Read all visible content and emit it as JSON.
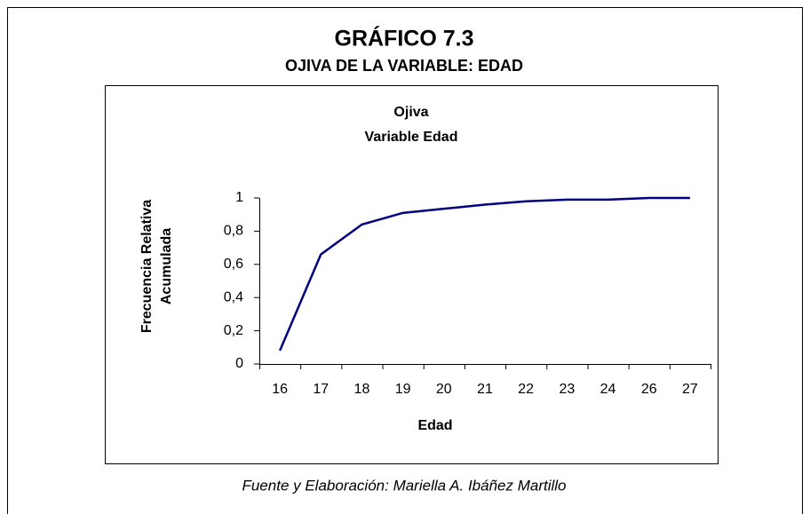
{
  "header": {
    "title": "GRÁFICO 7.3",
    "subtitle": "OJIVA DE LA VARIABLE: EDAD"
  },
  "footer": "Fuente y Elaboración: Mariella A. Ibáñez Martillo",
  "chart_data": {
    "type": "line",
    "title": "Ojiva",
    "subtitle": "Variable Edad",
    "xlabel": "Edad",
    "ylabel": [
      "Frecuencia Relativa",
      "Acumulada"
    ],
    "categories": [
      "16",
      "17",
      "18",
      "19",
      "20",
      "21",
      "22",
      "23",
      "24",
      "26",
      "27"
    ],
    "values": [
      0.08,
      0.66,
      0.84,
      0.91,
      0.935,
      0.96,
      0.98,
      0.99,
      0.99,
      1,
      1
    ],
    "color": "#000080",
    "ylim": [
      0,
      1
    ],
    "yticks": [
      0,
      {
        "value": 0.2,
        "label": "0,2"
      },
      {
        "value": 0.4,
        "label": "0,4"
      },
      {
        "value": 0.6,
        "label": "0,6"
      },
      {
        "value": 0.8,
        "label": "0,8"
      },
      1
    ],
    "grid": false
  }
}
